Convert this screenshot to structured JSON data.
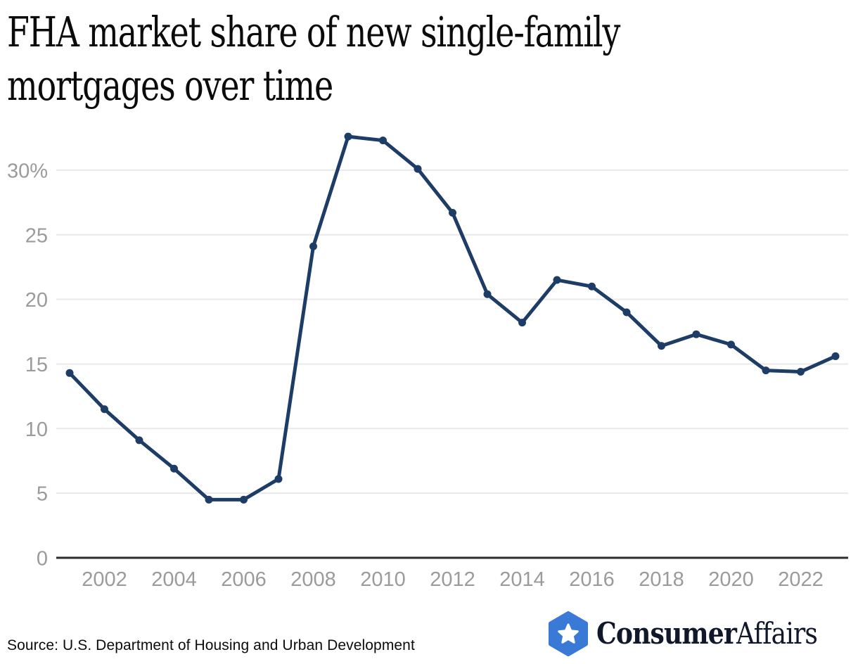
{
  "header": {
    "title_lines": [
      "FHA market share of new single-family",
      "mortgages over time"
    ]
  },
  "chart_data": {
    "type": "line",
    "title": "FHA market share of new single-family mortgages over time",
    "xlabel": "",
    "ylabel": "",
    "x": [
      2001,
      2002,
      2003,
      2004,
      2005,
      2006,
      2007,
      2008,
      2009,
      2010,
      2011,
      2012,
      2013,
      2014,
      2015,
      2016,
      2017,
      2018,
      2019,
      2020,
      2021,
      2022,
      2023
    ],
    "values": [
      14.3,
      11.5,
      9.1,
      6.9,
      4.5,
      4.5,
      6.1,
      24.1,
      32.6,
      32.3,
      30.1,
      26.7,
      20.4,
      18.2,
      21.5,
      21.0,
      19.0,
      16.4,
      17.3,
      16.5,
      14.5,
      14.4,
      15.6
    ],
    "ylim": [
      0,
      33.5
    ],
    "yticks": [
      {
        "v": 0,
        "label": "0"
      },
      {
        "v": 5,
        "label": "5"
      },
      {
        "v": 10,
        "label": "10"
      },
      {
        "v": 15,
        "label": "15"
      },
      {
        "v": 20,
        "label": "20"
      },
      {
        "v": 25,
        "label": "25"
      },
      {
        "v": 30,
        "label": "30%"
      }
    ],
    "xticks": [
      2002,
      2004,
      2006,
      2008,
      2010,
      2012,
      2014,
      2016,
      2018,
      2020,
      2022
    ],
    "grid": "horizontal",
    "legend": "none",
    "line_color": "#1d3c66",
    "marker": "circle",
    "grid_color": "#e9e9e9",
    "axis_color": "#2d2d2d",
    "tick_label_color": "#9b9b9b"
  },
  "footer": {
    "source": "Source: U.S. Department of Housing and Urban Development"
  },
  "logo": {
    "badge_icon": "hexagon-star-badge",
    "badge_color": "#3a7ad6",
    "star_color": "#ffffff",
    "text_bold": "Consumer",
    "text_regular": "Affairs",
    "text_color": "#10182a"
  }
}
